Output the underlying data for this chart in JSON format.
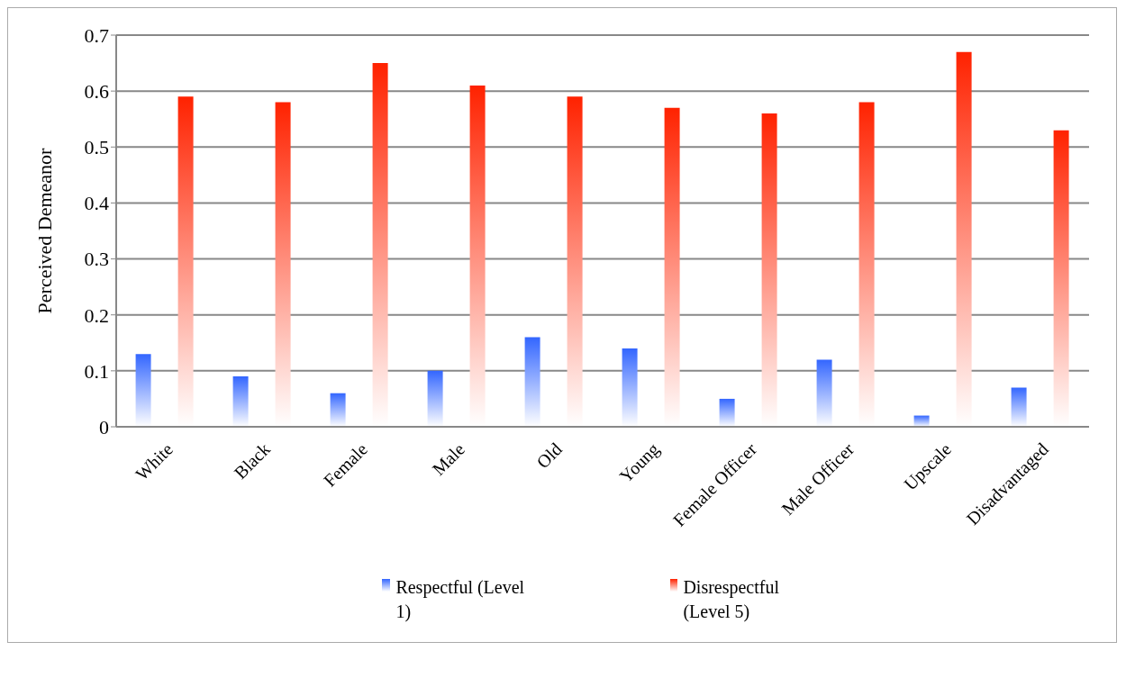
{
  "chart_data": {
    "type": "bar",
    "ylabel": "Perceived Demeanor",
    "categories": [
      "White",
      "Black",
      "Female",
      "Male",
      "Old",
      "Young",
      "Female Officer",
      "Male Officer",
      "Upscale",
      "Disadvantaged"
    ],
    "series": [
      {
        "name": "Respectful (Level 1)",
        "color": "#3366ff",
        "values": [
          0.13,
          0.09,
          0.06,
          0.1,
          0.16,
          0.14,
          0.05,
          0.12,
          0.02,
          0.07
        ]
      },
      {
        "name": "Disrespectful (Level 5)",
        "color": "#ff2200",
        "values": [
          0.59,
          0.58,
          0.65,
          0.61,
          0.59,
          0.57,
          0.56,
          0.58,
          0.67,
          0.53
        ]
      }
    ],
    "ylim": [
      0,
      0.7
    ],
    "yticks": [
      0,
      0.1,
      0.2,
      0.3,
      0.4,
      0.5,
      0.6,
      0.7
    ],
    "grid": "y",
    "legend": "bottom"
  }
}
